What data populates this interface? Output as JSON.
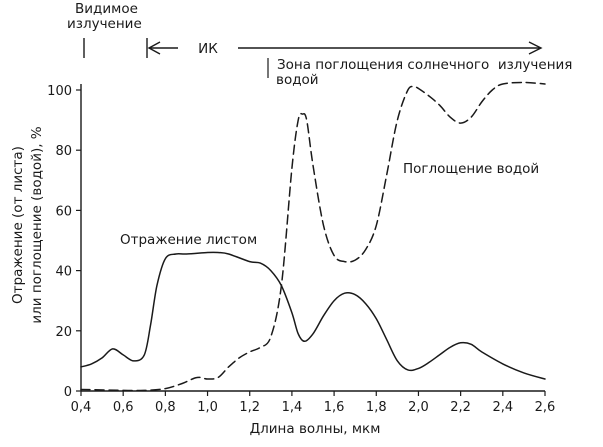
{
  "chart_data": {
    "type": "line",
    "title": "",
    "xlabel": "Длина волны, мкм",
    "ylabel_lines": [
      "Отражение (от листа)",
      "или поглощение (водой), %"
    ],
    "xlim": [
      0.4,
      2.6
    ],
    "ylim": [
      0,
      100
    ],
    "x_ticks": [
      "0,4",
      "0,6",
      "0,8",
      "1,0",
      "1,2",
      "1,4",
      "1,6",
      "1,8",
      "2,0",
      "2,2",
      "2,4",
      "2,6"
    ],
    "x_tick_values": [
      0.4,
      0.6,
      0.8,
      1.0,
      1.2,
      1.4,
      1.6,
      1.8,
      2.0,
      2.2,
      2.4,
      2.6
    ],
    "y_ticks": [
      "0",
      "20",
      "40",
      "60",
      "80",
      "100"
    ],
    "y_tick_values": [
      0,
      20,
      40,
      60,
      80,
      100
    ],
    "grid": false,
    "annotations": {
      "visible_lines": [
        "Видимое",
        "излучение"
      ],
      "ir": "ИК",
      "absorption_zone_lines": [
        "Зона поглощения солнечного  излучения",
        "водой"
      ],
      "leaf_label": "Отражение листом",
      "water_label": "Поглощение водой"
    },
    "series": [
      {
        "name": "",
        "style": "solid",
        "x": [
          0.4,
          0.45,
          0.5,
          0.55,
          0.6,
          0.65,
          0.7,
          0.73,
          0.76,
          0.8,
          0.85,
          0.9,
          1.0,
          1.05,
          1.1,
          1.2,
          1.25,
          1.3,
          1.35,
          1.4,
          1.43,
          1.46,
          1.5,
          1.55,
          1.6,
          1.65,
          1.7,
          1.75,
          1.8,
          1.85,
          1.9,
          1.95,
          2.0,
          2.05,
          2.1,
          2.15,
          2.2,
          2.25,
          2.3,
          2.4,
          2.5,
          2.6
        ],
        "y": [
          8,
          9,
          11,
          14,
          12,
          10,
          12,
          22,
          35,
          44,
          45.5,
          45.5,
          46,
          46,
          45.5,
          43,
          42.5,
          40,
          35,
          26,
          19,
          16.5,
          19,
          25,
          30,
          32.5,
          32,
          29,
          24,
          17,
          10,
          7,
          7.5,
          9.5,
          12,
          14.5,
          16,
          15.5,
          13,
          9,
          6,
          4
        ]
      },
      {
        "name": "",
        "style": "dashed",
        "x": [
          0.4,
          0.6,
          0.7,
          0.8,
          0.88,
          0.95,
          1.0,
          1.05,
          1.1,
          1.15,
          1.2,
          1.25,
          1.3,
          1.35,
          1.4,
          1.43,
          1.45,
          1.47,
          1.5,
          1.55,
          1.6,
          1.65,
          1.7,
          1.75,
          1.8,
          1.85,
          1.9,
          1.95,
          1.98,
          2.0,
          2.05,
          2.1,
          2.15,
          2.2,
          2.25,
          2.3,
          2.35,
          2.4,
          2.5,
          2.6
        ],
        "y": [
          0.5,
          0.2,
          0.2,
          0.8,
          2.5,
          4.5,
          4,
          4.5,
          8,
          11,
          13,
          14.5,
          18,
          35,
          74,
          90,
          92,
          90,
          75,
          55,
          45,
          43,
          43.5,
          47,
          55,
          72,
          90,
          100,
          101,
          100.5,
          98,
          95,
          91,
          89,
          91,
          96,
          100,
          102,
          102.5,
          102
        ]
      }
    ]
  }
}
